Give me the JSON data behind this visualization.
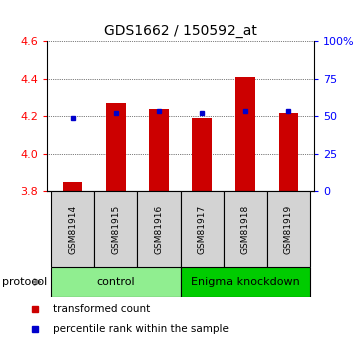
{
  "title": "GDS1662 / 150592_at",
  "samples": [
    "GSM81914",
    "GSM81915",
    "GSM81916",
    "GSM81917",
    "GSM81918",
    "GSM81919"
  ],
  "red_values": [
    3.85,
    4.27,
    4.24,
    4.19,
    4.41,
    4.22
  ],
  "blue_values": [
    4.19,
    4.22,
    4.23,
    4.22,
    4.23,
    4.23
  ],
  "ylim_left": [
    3.8,
    4.6
  ],
  "ylim_right": [
    0,
    100
  ],
  "yticks_left": [
    3.8,
    4.0,
    4.2,
    4.4,
    4.6
  ],
  "yticks_right": [
    0,
    25,
    50,
    75,
    100
  ],
  "ytick_labels_right": [
    "0",
    "25",
    "50",
    "75",
    "100%"
  ],
  "bar_bottom": 3.8,
  "bar_color": "#cc0000",
  "marker_color": "#0000cc",
  "control_label": "control",
  "knockdown_label": "Enigma knockdown",
  "protocol_label": "protocol",
  "legend_red": "transformed count",
  "legend_blue": "percentile rank within the sample",
  "sample_box_color": "#d3d3d3",
  "control_box_color": "#90ee90",
  "knockdown_box_color": "#00cc00",
  "bar_width": 0.45,
  "title_fontsize": 10,
  "tick_fontsize": 8,
  "sample_fontsize": 6.5,
  "proto_fontsize": 8,
  "legend_fontsize": 7.5
}
